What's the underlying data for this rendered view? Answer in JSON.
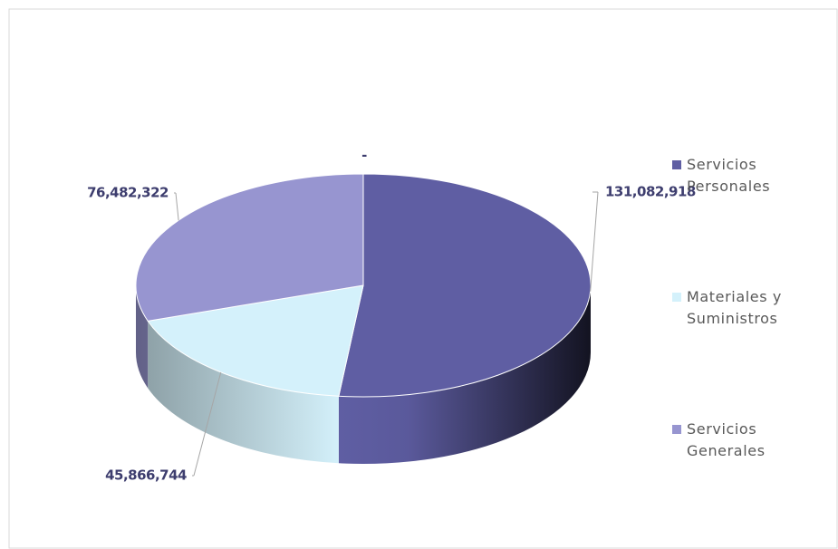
{
  "chart_data": {
    "type": "pie",
    "categories": [
      "Servicios Personales",
      "Materiales y Suministros",
      "Servicios Generales",
      null
    ],
    "values": [
      131082918,
      45866744,
      76482322,
      0
    ],
    "value_labels": [
      "131,082,918",
      "45,866,744",
      "76,482,322",
      "-"
    ],
    "colors": [
      "#5f5ea3",
      "#d4f1fb",
      "#9795d0",
      "#7a7a7a"
    ],
    "legend": "right"
  }
}
